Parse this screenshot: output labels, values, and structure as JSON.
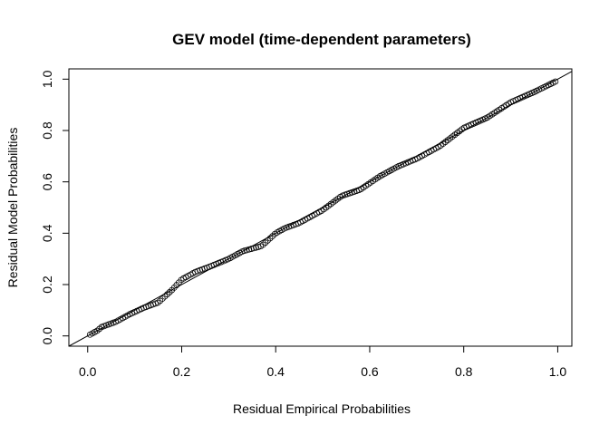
{
  "chart_data": {
    "type": "scatter",
    "title": "GEV model (time-dependent parameters)",
    "xlabel": "Residual Empirical Probabilities",
    "ylabel": "Residual Model Probabilities",
    "xlim": [
      -0.04,
      1.03
    ],
    "ylim": [
      -0.04,
      1.04
    ],
    "x_ticks": [
      "0.0",
      "0.2",
      "0.4",
      "0.6",
      "0.8",
      "1.0"
    ],
    "y_ticks": [
      "0.0",
      "0.2",
      "0.4",
      "0.6",
      "0.8",
      "1.0"
    ],
    "reference_line": "y = x",
    "marker": "open-circle",
    "grid": false,
    "n_points": 200,
    "curve_knots": [
      [
        0.0,
        0.0
      ],
      [
        0.02,
        0.02
      ],
      [
        0.03,
        0.035
      ],
      [
        0.06,
        0.055
      ],
      [
        0.09,
        0.085
      ],
      [
        0.12,
        0.11
      ],
      [
        0.15,
        0.13
      ],
      [
        0.18,
        0.18
      ],
      [
        0.2,
        0.22
      ],
      [
        0.23,
        0.25
      ],
      [
        0.26,
        0.27
      ],
      [
        0.3,
        0.3
      ],
      [
        0.33,
        0.33
      ],
      [
        0.37,
        0.35
      ],
      [
        0.4,
        0.4
      ],
      [
        0.42,
        0.42
      ],
      [
        0.45,
        0.44
      ],
      [
        0.5,
        0.49
      ],
      [
        0.54,
        0.545
      ],
      [
        0.58,
        0.57
      ],
      [
        0.62,
        0.62
      ],
      [
        0.66,
        0.66
      ],
      [
        0.7,
        0.69
      ],
      [
        0.75,
        0.74
      ],
      [
        0.8,
        0.81
      ],
      [
        0.85,
        0.85
      ],
      [
        0.9,
        0.91
      ],
      [
        0.95,
        0.95
      ],
      [
        1.0,
        0.995
      ]
    ]
  }
}
